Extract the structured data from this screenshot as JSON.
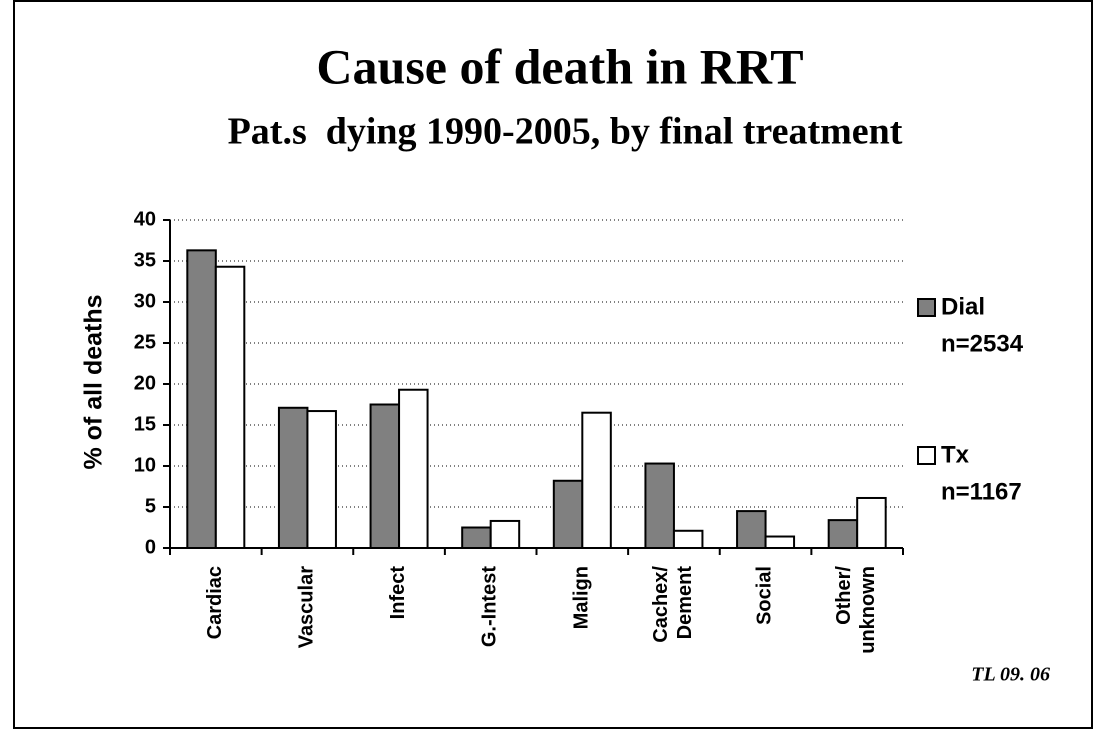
{
  "chart_data": {
    "type": "bar",
    "title": "Cause of death in RRT",
    "subtitle": "Pat.s  dying 1990-2005, by final treatment",
    "y_label": "% of all deaths",
    "categories": [
      [
        "Cardiac"
      ],
      [
        "Vascular"
      ],
      [
        "Infect"
      ],
      [
        "G.-Intest"
      ],
      [
        "Malign"
      ],
      [
        "Cachex/",
        "Dement"
      ],
      [
        "Social"
      ],
      [
        "Other/",
        "unknown"
      ]
    ],
    "series": [
      {
        "name": "Dial",
        "n": "n=2534",
        "color": "#808080",
        "values": [
          36.3,
          17.1,
          17.5,
          2.5,
          8.2,
          10.3,
          4.5,
          3.4
        ]
      },
      {
        "name": "Tx",
        "n": "n=1167",
        "color": "#ffffff",
        "values": [
          34.3,
          16.7,
          19.3,
          3.3,
          16.5,
          2.1,
          1.4,
          6.1
        ]
      }
    ],
    "ylim": [
      0,
      40
    ],
    "yticks": [
      0,
      5,
      10,
      15,
      20,
      25,
      30,
      35,
      40
    ],
    "grid": true,
    "footnote": "TL 09. 06"
  }
}
